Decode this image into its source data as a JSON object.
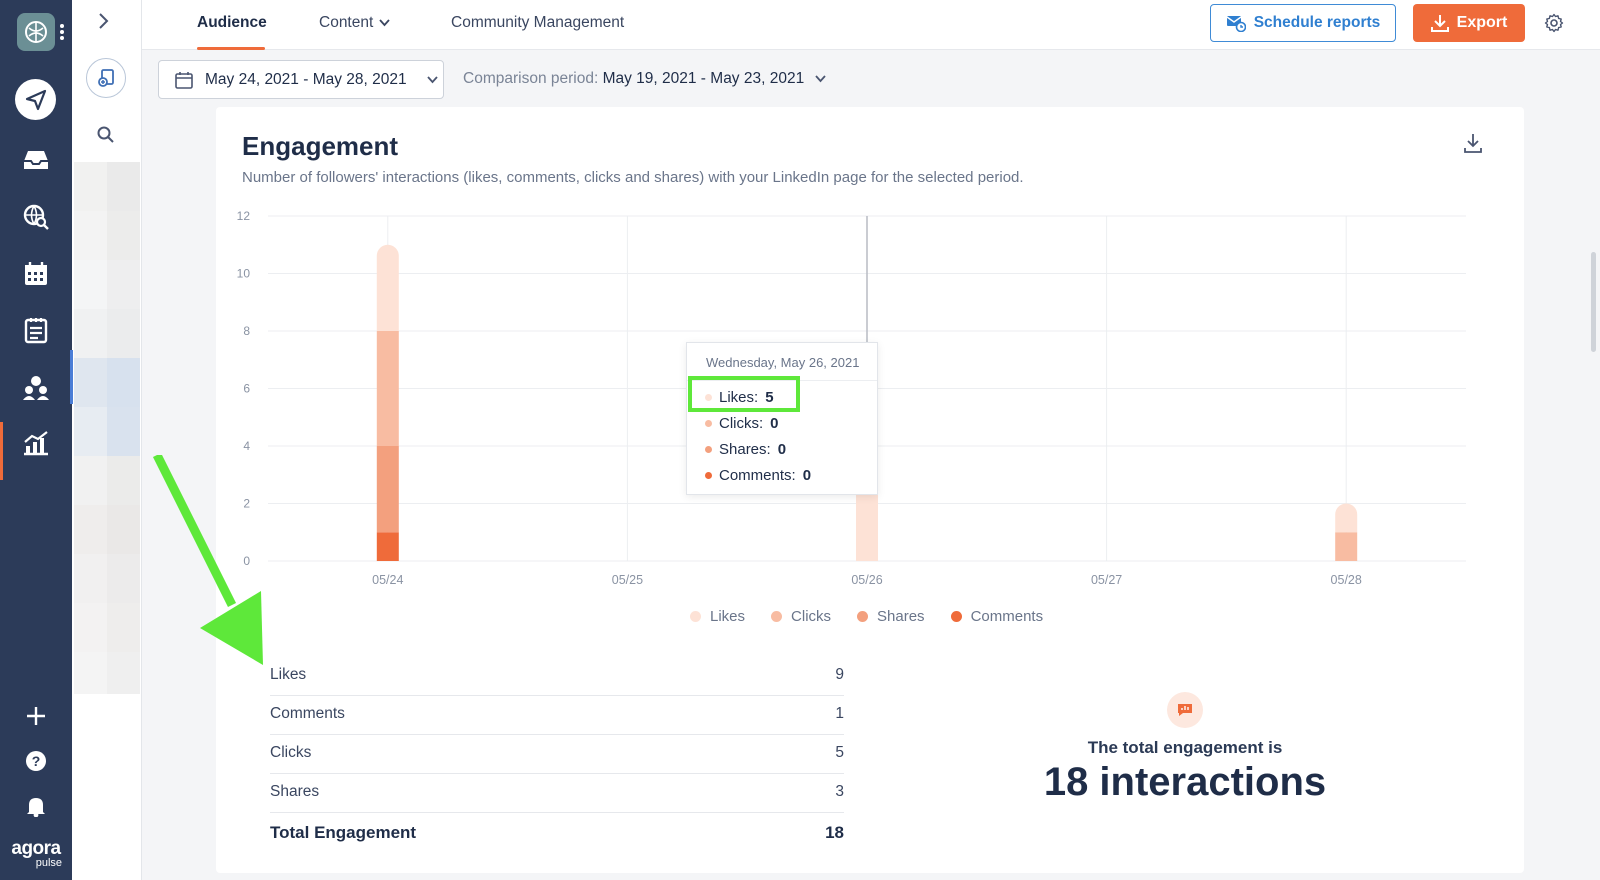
{
  "topbar": {
    "tabs": [
      {
        "label": "Audience",
        "active": true
      },
      {
        "label": "Content",
        "dropdown": true
      },
      {
        "label": "Community Management"
      }
    ],
    "schedule_label": "Schedule reports",
    "export_label": "Export"
  },
  "filters": {
    "date_range": "May 24, 2021 - May 28, 2021",
    "comparison_label": "Comparison period:",
    "comparison_value": "May 19, 2021 - May 23, 2021"
  },
  "card": {
    "title": "Engagement",
    "subtitle": "Number of followers' interactions (likes, comments, clicks and shares) with your LinkedIn page for the selected period."
  },
  "colors": {
    "likes": "#fde2d6",
    "clicks": "#f8bca2",
    "shares": "#f3a07e",
    "comments": "#ef6b3a",
    "accent": "#ef6b3a",
    "highlight": "#5ee83a"
  },
  "chart_data": {
    "type": "bar",
    "stacked": true,
    "categories": [
      "05/24",
      "05/25",
      "05/26",
      "05/27",
      "05/28"
    ],
    "series": [
      {
        "name": "Comments",
        "values": [
          1,
          0,
          0,
          0,
          0
        ]
      },
      {
        "name": "Shares",
        "values": [
          3,
          0,
          0,
          0,
          0
        ]
      },
      {
        "name": "Clicks",
        "values": [
          4,
          0,
          0,
          0,
          1
        ]
      },
      {
        "name": "Likes",
        "values": [
          3,
          0,
          5,
          0,
          1
        ]
      }
    ],
    "ylim": [
      0,
      12
    ],
    "yticks": [
      0,
      2,
      4,
      6,
      8,
      10,
      12
    ],
    "legend": [
      "Likes",
      "Clicks",
      "Shares",
      "Comments"
    ],
    "grid": true
  },
  "tooltip": {
    "date": "Wednesday, May 26, 2021",
    "rows": [
      {
        "label": "Likes:",
        "value": "5"
      },
      {
        "label": "Clicks:",
        "value": "0"
      },
      {
        "label": "Shares:",
        "value": "0"
      },
      {
        "label": "Comments:",
        "value": "0"
      }
    ]
  },
  "stats": [
    {
      "label": "Likes",
      "value": "9"
    },
    {
      "label": "Comments",
      "value": "1"
    },
    {
      "label": "Clicks",
      "value": "5"
    },
    {
      "label": "Shares",
      "value": "3"
    }
  ],
  "total": {
    "label": "Total Engagement",
    "value": "18"
  },
  "summary": {
    "line1": "The total engagement is",
    "line2": "18 interactions"
  },
  "brand": {
    "line1": "agora",
    "line2": "pulse"
  }
}
